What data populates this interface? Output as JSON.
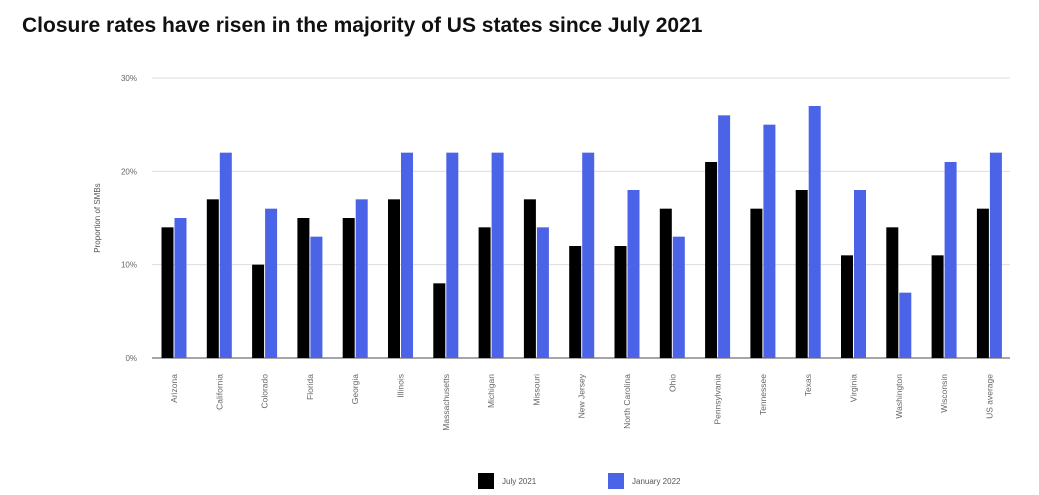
{
  "chart_data": {
    "type": "bar",
    "title": "Closure rates have risen in the majority of US states since July 2021",
    "ylabel": "Proportion of SMBs",
    "xlabel": "",
    "ylim": [
      0,
      30
    ],
    "yticks": [
      "0%",
      "10%",
      "20%",
      "30%"
    ],
    "grid": true,
    "legend": "bottom",
    "categories": [
      "Arizona",
      "California",
      "Colorado",
      "Florida",
      "Georgia",
      "Illinois",
      "Massachusetts",
      "Michigan",
      "Missouri",
      "New Jersey",
      "North Carolina",
      "Ohio",
      "Pennsylvania",
      "Tennessee",
      "Texas",
      "Virginia",
      "Washington",
      "Wisconsin",
      "US average"
    ],
    "series": [
      {
        "name": "July 2021",
        "color": "#000000",
        "values": [
          14,
          17,
          10,
          15,
          15,
          17,
          8,
          14,
          17,
          12,
          12,
          16,
          21,
          16,
          18,
          11,
          14,
          11,
          16
        ]
      },
      {
        "name": "January 2022",
        "color": "#4b63e6",
        "values": [
          15,
          22,
          16,
          13,
          17,
          22,
          22,
          22,
          14,
          22,
          18,
          13,
          26,
          25,
          27,
          18,
          7,
          21,
          22
        ]
      }
    ]
  }
}
